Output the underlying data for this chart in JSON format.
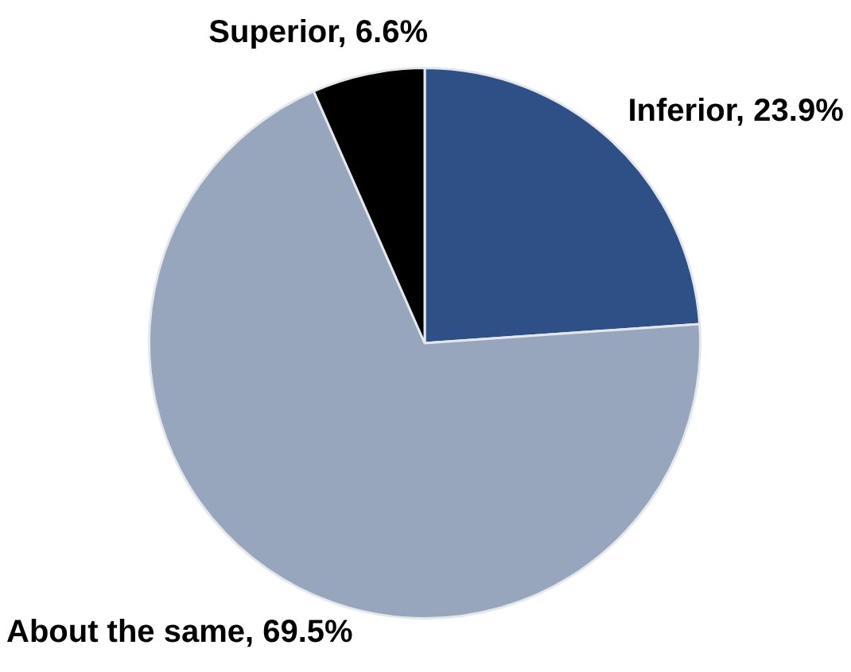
{
  "chart_data": {
    "type": "pie",
    "categories": [
      "Inferior",
      "About the same",
      "Superior"
    ],
    "values": [
      23.9,
      69.5,
      6.6
    ],
    "colors": [
      "#2f4f87",
      "#97a6bc",
      "#000000"
    ],
    "value_labels": [
      "23.9%",
      "69.5%",
      "6.6%"
    ]
  }
}
